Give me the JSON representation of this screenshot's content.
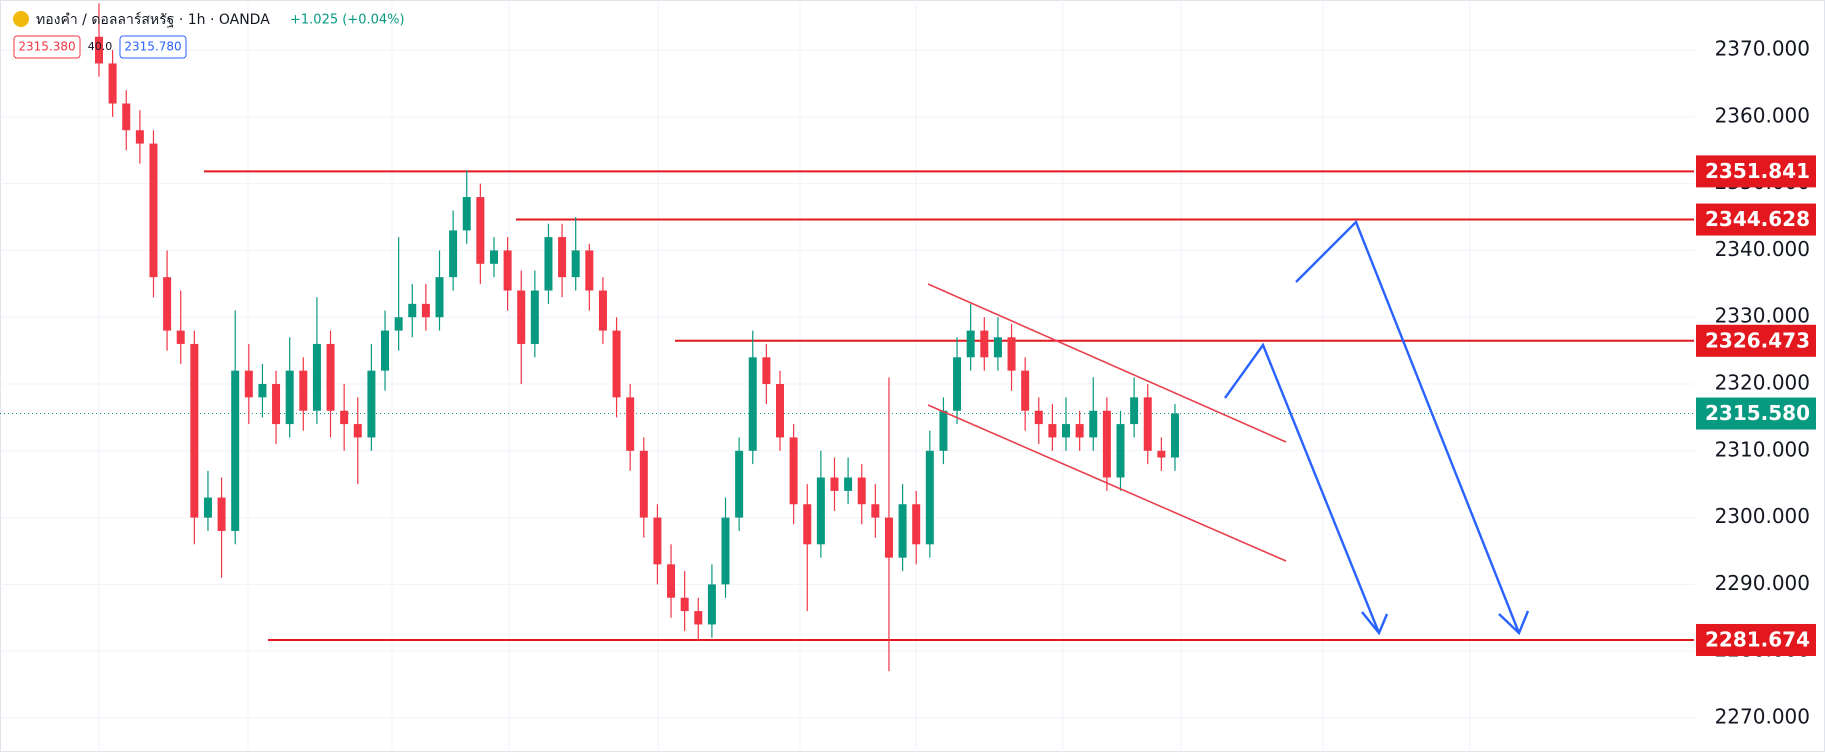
{
  "chart_data": {
    "type": "candlestick",
    "title": "ทองคำ / ดอลลาร์สหรัฐ · 1h · OANDA",
    "change": "+1.025 (+0.04%)",
    "bid": "2315.380",
    "spread": "40.0",
    "ask": "2315.780",
    "up_color": "#089981",
    "down_color": "#f23645",
    "ylim": [
      2264.9,
      2377.5
    ],
    "yticks": [
      {
        "value": 2270,
        "label": "2270.000"
      },
      {
        "value": 2280,
        "label": "2280.000"
      },
      {
        "value": 2290,
        "label": "2290.000"
      },
      {
        "value": 2300,
        "label": "2300.000"
      },
      {
        "value": 2310,
        "label": "2310.000"
      },
      {
        "value": 2320,
        "label": "2320.000"
      },
      {
        "value": 2330,
        "label": "2330.000"
      },
      {
        "value": 2340,
        "label": "2340.000"
      },
      {
        "value": 2350,
        "label": "2350.000"
      },
      {
        "value": 2360,
        "label": "2360.000"
      },
      {
        "value": 2370,
        "label": "2370.000"
      }
    ],
    "levels": [
      2351.841,
      2344.628,
      2326.473,
      2281.674
    ],
    "level_color": "#e3181e",
    "last_price": {
      "value": 2315.58,
      "label": "2315.580"
    },
    "open": [
      2372,
      2368,
      2362,
      2358,
      2356,
      2336,
      2328,
      2326,
      2300,
      2303,
      2298,
      2322,
      2318,
      2320,
      2314,
      2322,
      2316,
      2326,
      2316,
      2314,
      2312,
      2322,
      2328,
      2330,
      2332,
      2330,
      2336,
      2343,
      2348,
      2338,
      2340,
      2334,
      2326,
      2334,
      2342,
      2336,
      2340,
      2334,
      2328,
      2318,
      2310,
      2300,
      2293,
      2288,
      2286,
      2284,
      2290,
      2300,
      2310,
      2324,
      2320,
      2312,
      2302,
      2296,
      2306,
      2304,
      2306,
      2302,
      2300,
      2294,
      2302,
      2296,
      2310,
      2316,
      2324,
      2328,
      2324,
      2327,
      2322,
      2316,
      2314,
      2312,
      2314,
      2312,
      2316,
      2306,
      2314,
      2318,
      2310,
      2309
    ],
    "high": [
      2377,
      2370,
      2364,
      2361,
      2358,
      2340,
      2334,
      2328,
      2307,
      2306,
      2331,
      2326,
      2323,
      2322,
      2327,
      2324,
      2333,
      2328,
      2320,
      2318,
      2326,
      2331,
      2342,
      2335,
      2335,
      2340,
      2346,
      2352,
      2350,
      2342,
      2342,
      2337,
      2337,
      2344,
      2344,
      2345,
      2341,
      2336,
      2330,
      2320,
      2312,
      2302,
      2296,
      2292,
      2288,
      2293,
      2303,
      2312,
      2328,
      2326,
      2322,
      2314,
      2305,
      2310,
      2309,
      2309,
      2308,
      2305,
      2321,
      2305,
      2304,
      2313,
      2318,
      2327,
      2332,
      2330,
      2330,
      2329,
      2324,
      2318,
      2317,
      2318,
      2316,
      2321,
      2318,
      2316,
      2321,
      2320,
      2312,
      2317
    ],
    "low": [
      2366,
      2360,
      2355,
      2353,
      2333,
      2325,
      2323,
      2296,
      2298,
      2291,
      2296,
      2314,
      2315,
      2311,
      2312,
      2313,
      2314,
      2312,
      2310,
      2305,
      2310,
      2319,
      2325,
      2327,
      2328,
      2328,
      2334,
      2341,
      2335,
      2336,
      2331,
      2320,
      2324,
      2332,
      2333,
      2334,
      2331,
      2326,
      2315,
      2307,
      2297,
      2290,
      2285,
      2283,
      2281.5,
      2282,
      2288,
      2298,
      2308,
      2317,
      2310,
      2299,
      2286,
      2294,
      2301,
      2302,
      2299,
      2297,
      2277,
      2292,
      2293,
      2294,
      2308,
      2314,
      2322,
      2322,
      2322,
      2319,
      2313,
      2311,
      2310,
      2310,
      2310,
      2310,
      2304,
      2304,
      2312,
      2308,
      2307,
      2307
    ],
    "close": [
      2368,
      2362,
      2358,
      2356,
      2336,
      2328,
      2326,
      2300,
      2303,
      2298,
      2322,
      2318,
      2320,
      2314,
      2322,
      2316,
      2326,
      2316,
      2314,
      2312,
      2322,
      2328,
      2330,
      2332,
      2330,
      2336,
      2343,
      2348,
      2338,
      2340,
      2334,
      2326,
      2334,
      2342,
      2336,
      2340,
      2334,
      2328,
      2318,
      2310,
      2300,
      2293,
      2288,
      2286,
      2284,
      2290,
      2300,
      2310,
      2324,
      2320,
      2312,
      2302,
      2296,
      2306,
      2304,
      2306,
      2302,
      2300,
      2294,
      2302,
      2296,
      2310,
      2316,
      2324,
      2328,
      2324,
      2327,
      2322,
      2316,
      2314,
      2312,
      2314,
      2312,
      2316,
      2306,
      2314,
      2318,
      2310,
      2309,
      2315.58
    ]
  }
}
